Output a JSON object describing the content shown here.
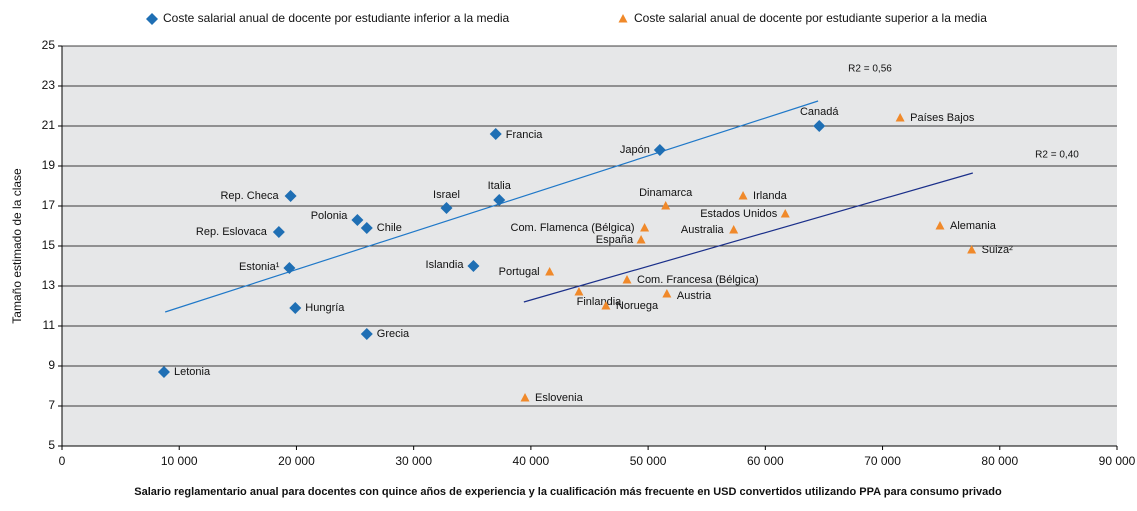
{
  "chart_data": {
    "type": "scatter",
    "xlabel": "Salario reglamentario anual para docentes con quince años de experiencia y la cualificación más frecuente en USD convertidos utilizando PPA para consumo privado",
    "ylabel": "Tamaño estimado de la clase",
    "xlim": [
      0,
      90000
    ],
    "xticks": [
      0,
      {
        "value": 10000,
        "label": "10 000"
      },
      {
        "value": 20000,
        "label": "20 000"
      },
      {
        "value": 30000,
        "label": "30 000"
      },
      {
        "value": 40000,
        "label": "40 000"
      },
      {
        "value": 50000,
        "label": "50 000"
      },
      {
        "value": 60000,
        "label": "60 000"
      },
      {
        "value": 70000,
        "label": "70 000"
      },
      {
        "value": 80000,
        "label": "80 000"
      },
      {
        "value": 90000,
        "label": "90 000"
      }
    ],
    "ylim": [
      5,
      25
    ],
    "yticks": [
      5,
      7,
      9,
      11,
      13,
      15,
      17,
      19,
      21,
      23,
      25
    ],
    "grid": true,
    "legend": "top",
    "series": [
      {
        "name": "Coste salarial anual de docente por estudiante inferior a la media",
        "color": "#1f6fb4",
        "marker": "diamond",
        "labels": [
          "Letonia",
          "Estonia¹",
          "Hungría",
          "Rep. Checa",
          "Rep. Eslovaca",
          "Polonia",
          "Chile",
          "Grecia",
          "Israel",
          "Italia",
          "Islandia",
          "Francia",
          "Japón",
          "Canadá"
        ],
        "x": [
          8700,
          19400,
          19900,
          19500,
          18500,
          25200,
          26000,
          26000,
          32800,
          37300,
          35100,
          37000,
          51000,
          64600
        ],
        "values": [
          8.7,
          13.9,
          11.9,
          17.5,
          15.7,
          16.3,
          15.9,
          10.6,
          16.9,
          17.3,
          14.0,
          20.6,
          19.8,
          21.0
        ]
      },
      {
        "name": "Coste salarial anual de docente por estudiante superior a la media",
        "color": "#f0892a",
        "marker": "triangle",
        "labels": [
          "Países Bajos",
          "Irlanda",
          "Dinamarca",
          "Estados Unidos",
          "Com. Flamenca (Bélgica)",
          "Australia",
          "España",
          "Alemania",
          "Suiza²",
          "Portugal",
          "Com. Francesa (Bélgica)",
          "Finlandia",
          "Austria",
          "Noruega",
          "Eslovenia"
        ],
        "x": [
          71500,
          58100,
          51500,
          61700,
          49700,
          57300,
          49400,
          74900,
          77600,
          41600,
          48200,
          44100,
          51600,
          46400,
          39500
        ],
        "values": [
          21.4,
          17.5,
          17.0,
          16.6,
          15.9,
          15.8,
          15.3,
          16.0,
          14.8,
          13.7,
          13.3,
          12.7,
          12.6,
          12.0,
          7.4
        ]
      }
    ],
    "trendlines": [
      {
        "label": "R2 = 0,56",
        "color": "#1f78c8",
        "x": [
          8800,
          64500
        ],
        "y": [
          11.7,
          22.25
        ]
      },
      {
        "label": "R2 = 0,40",
        "color": "#1a2f8a",
        "x": [
          39400,
          77700
        ],
        "y": [
          12.2,
          18.65
        ]
      }
    ]
  }
}
